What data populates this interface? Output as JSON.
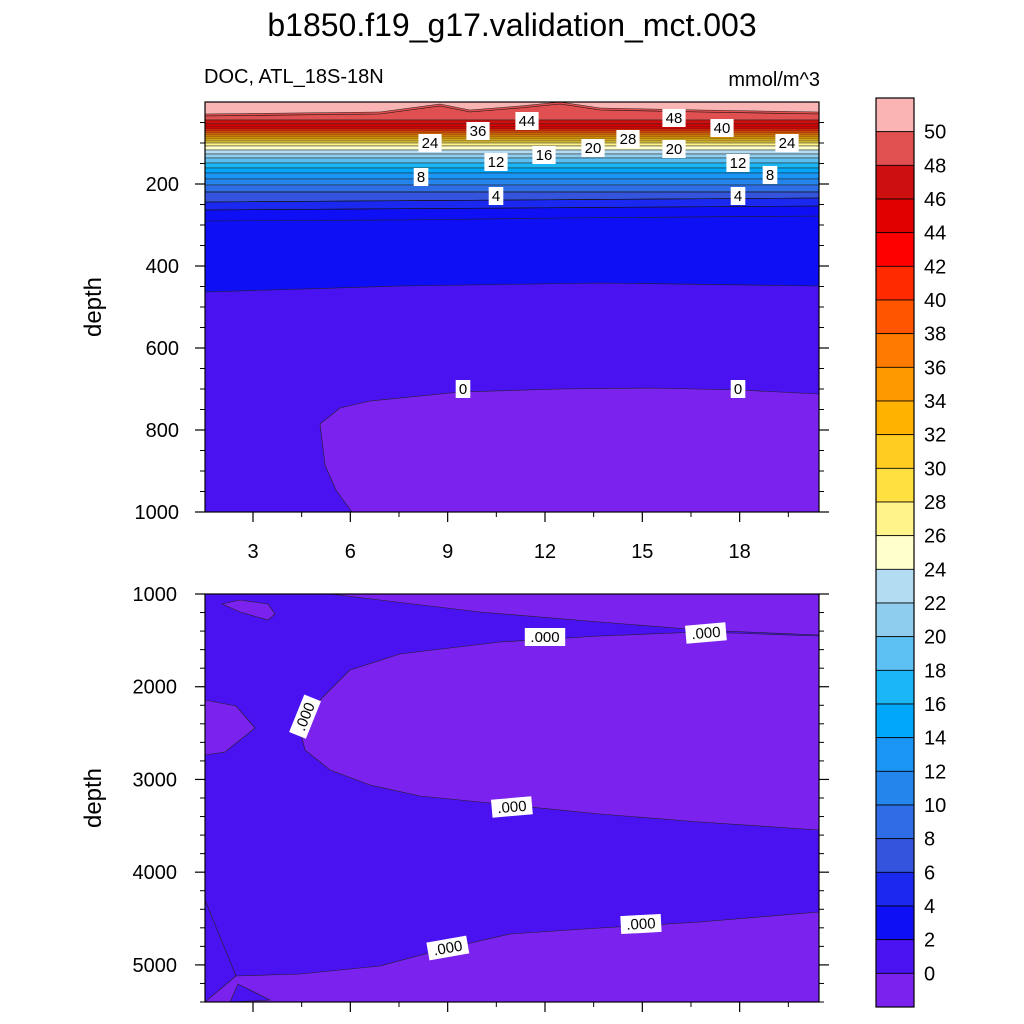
{
  "chart_data": {
    "type": "contour",
    "title": "b1850.f19_g17.validation_mct.003",
    "variable_label": "DOC, ATL_18S-18N",
    "units": "mmol/m^3",
    "colorbar": {
      "ticks": [
        "50",
        "48",
        "46",
        "44",
        "42",
        "40",
        "38",
        "36",
        "34",
        "32",
        "30",
        "28",
        "26",
        "24",
        "22",
        "20",
        "18",
        "16",
        "14",
        "12",
        "10",
        "8",
        "6",
        "4",
        "2",
        "0"
      ],
      "colors": [
        "#fbb4b4",
        "#e05050",
        "#cc1010",
        "#e00000",
        "#ff0000",
        "#ff2a00",
        "#ff5500",
        "#ff7a00",
        "#ff9900",
        "#ffb300",
        "#ffcc22",
        "#ffe040",
        "#fff38a",
        "#ffffcc",
        "#b3dcf2",
        "#8fcdee",
        "#5cc0f2",
        "#1ab6f5",
        "#00a7fa",
        "#1a94f5",
        "#2486ec",
        "#2e6de6",
        "#3454dd",
        "#1a28f0",
        "#0f0ff5",
        "#4a12f0",
        "#7b22ee"
      ]
    },
    "panels": [
      {
        "name": "upper",
        "ylabel": "depth",
        "ylim": [
          0,
          1000
        ],
        "y_ticks": [
          "200",
          "400",
          "600",
          "800",
          "1000"
        ],
        "x_ticks": [
          "3",
          "6",
          "9",
          "12",
          "15",
          "18"
        ],
        "contour_labels": [
          "48",
          "44",
          "36",
          "40",
          "24",
          "28",
          "20",
          "20",
          "24",
          "16",
          "12",
          "12",
          "8",
          "8",
          "4",
          "4",
          "0",
          "0"
        ]
      },
      {
        "name": "lower",
        "ylabel": "depth",
        "ylim": [
          1000,
          5400
        ],
        "y_ticks": [
          "1000",
          "2000",
          "3000",
          "4000",
          "5000"
        ],
        "contour_labels": [
          ".000",
          ".000",
          ".000",
          ".000",
          ".000",
          ".000"
        ]
      }
    ]
  }
}
